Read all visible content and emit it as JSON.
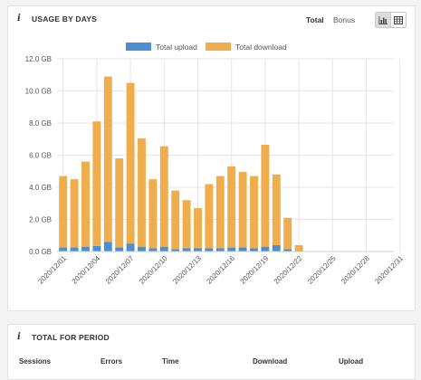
{
  "usage_panel": {
    "title": "USAGE BY DAYS",
    "toggles": {
      "total": "Total",
      "bonus": "Bonus"
    },
    "view_buttons": [
      {
        "icon": "bar-chart-icon",
        "active": true
      },
      {
        "icon": "table-icon",
        "active": false
      }
    ]
  },
  "chart_data": {
    "type": "bar",
    "stacked": true,
    "categories": [
      "2020/12/01",
      "2020/12/02",
      "2020/12/03",
      "2020/12/04",
      "2020/12/05",
      "2020/12/06",
      "2020/12/07",
      "2020/12/08",
      "2020/12/09",
      "2020/12/10",
      "2020/12/11",
      "2020/12/12",
      "2020/12/13",
      "2020/12/14",
      "2020/12/15",
      "2020/12/16",
      "2020/12/17",
      "2020/12/18",
      "2020/12/19",
      "2020/12/20",
      "2020/12/21",
      "2020/12/22",
      "2020/12/23",
      "2020/12/24",
      "2020/12/25",
      "2020/12/26",
      "2020/12/27",
      "2020/12/28",
      "2020/12/29",
      "2020/12/30",
      "2020/12/31"
    ],
    "tick_labels": [
      "2020/12/01",
      "2020/12/04",
      "2020/12/07",
      "2020/12/10",
      "2020/12/13",
      "2020/12/16",
      "2020/12/19",
      "2020/12/22",
      "2020/12/25",
      "2020/12/28",
      "2020/12/31"
    ],
    "series": [
      {
        "name": "Total upload",
        "color": "#4a8fd0",
        "values": [
          0.25,
          0.25,
          0.3,
          0.35,
          0.6,
          0.25,
          0.5,
          0.3,
          0.2,
          0.3,
          0.15,
          0.2,
          0.2,
          0.2,
          0.2,
          0.25,
          0.25,
          0.2,
          0.3,
          0.4,
          0.15,
          0.05,
          0,
          0,
          0,
          0,
          0,
          0,
          0,
          0,
          0
        ]
      },
      {
        "name": "Total download",
        "color": "#f0ad4e",
        "values": [
          4.45,
          4.25,
          5.3,
          7.75,
          10.3,
          5.55,
          10.0,
          6.75,
          4.3,
          6.25,
          3.65,
          3.0,
          2.5,
          4.0,
          4.5,
          5.05,
          4.7,
          4.5,
          6.35,
          4.4,
          1.95,
          0.35,
          0,
          0,
          0,
          0,
          0,
          0,
          0,
          0,
          0
        ]
      }
    ],
    "y_ticks": [
      "0.0 GB",
      "2.0 GB",
      "4.0 GB",
      "6.0 GB",
      "8.0 GB",
      "10.0 GB",
      "12.0 GB"
    ],
    "ylim": [
      0,
      12
    ],
    "grid": true,
    "legend_position": "top-center"
  },
  "total_panel": {
    "title": "TOTAL FOR PERIOD",
    "columns": [
      "Sessions",
      "Errors",
      "Time",
      "Download",
      "Upload"
    ]
  }
}
